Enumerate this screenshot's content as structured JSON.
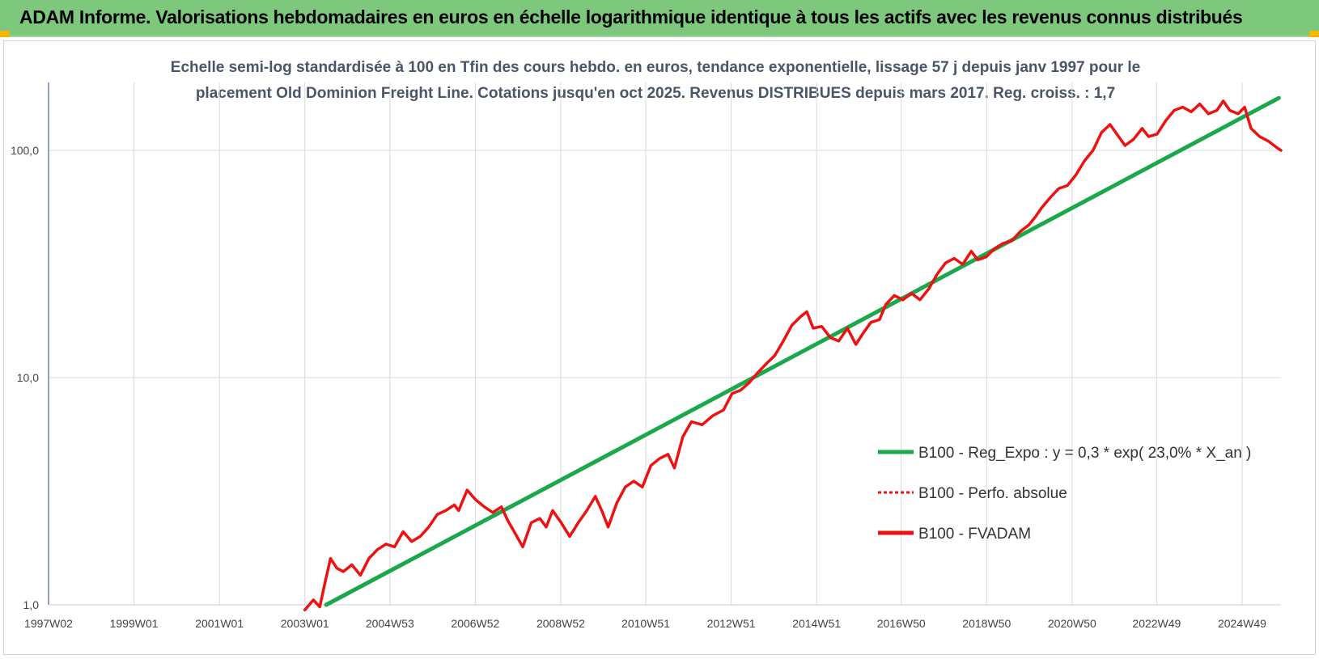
{
  "header": {
    "title": "ADAM Informe. Valorisations hebdomadaires en euros en échelle logarithmique identique à tous les actifs avec les revenus connus distribués"
  },
  "chart_data": {
    "type": "line",
    "title_line1": "Echelle semi-log standardisée à 100 en Tfin des cours hebdo. en euros, tendance exponentielle, lissage 57 j depuis janv 1997 pour le",
    "title_line2": "placement Old Dominion Freight Line. Cotations jusqu'en oct 2025. Revenus DISTRIBUES depuis mars 2017. Reg. croiss. : 1,7",
    "y_scale": "log",
    "ylim": [
      1,
      200
    ],
    "y_ticks": [
      {
        "value": 1,
        "label": "1,0"
      },
      {
        "value": 10,
        "label": "10,0"
      },
      {
        "value": 100,
        "label": "100,0"
      }
    ],
    "x_range": [
      1997.0,
      2025.85
    ],
    "x_ticks": [
      {
        "value": 1997.0,
        "label": "1997W02"
      },
      {
        "value": 1999.0,
        "label": "1999W01"
      },
      {
        "value": 2001.0,
        "label": "2001W01"
      },
      {
        "value": 2003.0,
        "label": "2003W01"
      },
      {
        "value": 2004.99,
        "label": "2004W53"
      },
      {
        "value": 2006.99,
        "label": "2006W52"
      },
      {
        "value": 2008.99,
        "label": "2008W52"
      },
      {
        "value": 2010.98,
        "label": "2010W51"
      },
      {
        "value": 2012.98,
        "label": "2012W51"
      },
      {
        "value": 2014.98,
        "label": "2014W51"
      },
      {
        "value": 2016.96,
        "label": "2016W50"
      },
      {
        "value": 2018.96,
        "label": "2018W50"
      },
      {
        "value": 2020.96,
        "label": "2020W50"
      },
      {
        "value": 2022.94,
        "label": "2022W49"
      },
      {
        "value": 2024.94,
        "label": "2024W49"
      }
    ],
    "grid": true,
    "legend_position": "bottom-right",
    "series": [
      {
        "name": "B100 - Reg_Expo : y = 0,3 * exp( 23,0% *  X_an )",
        "color": "#1aa84a",
        "style": "solid",
        "x": [
          2003.5,
          2025.8
        ],
        "y": [
          1.0,
          170
        ]
      },
      {
        "name": "B100 - Perfo. absolue",
        "color": "#ee1111",
        "style": "dotted",
        "x": [],
        "y": []
      },
      {
        "name": "B100 - FVADAM",
        "color": "#ee1111",
        "style": "solid",
        "x": [
          2003.0,
          2003.2,
          2003.35,
          2003.45,
          2003.6,
          2003.75,
          2003.9,
          2004.1,
          2004.3,
          2004.5,
          2004.7,
          2004.9,
          2005.1,
          2005.3,
          2005.5,
          2005.7,
          2005.9,
          2006.1,
          2006.3,
          2006.5,
          2006.6,
          2006.8,
          2007.0,
          2007.2,
          2007.4,
          2007.6,
          2007.75,
          2007.9,
          2008.1,
          2008.3,
          2008.5,
          2008.65,
          2008.8,
          2009.0,
          2009.2,
          2009.4,
          2009.6,
          2009.8,
          2009.95,
          2010.1,
          2010.3,
          2010.5,
          2010.7,
          2010.9,
          2011.1,
          2011.3,
          2011.5,
          2011.65,
          2011.85,
          2012.05,
          2012.3,
          2012.55,
          2012.8,
          2013.0,
          2013.2,
          2013.4,
          2013.6,
          2013.8,
          2014.0,
          2014.2,
          2014.4,
          2014.6,
          2014.75,
          2014.9,
          2015.1,
          2015.3,
          2015.5,
          2015.7,
          2015.9,
          2016.05,
          2016.25,
          2016.45,
          2016.6,
          2016.8,
          2017.0,
          2017.2,
          2017.4,
          2017.6,
          2017.8,
          2018.0,
          2018.2,
          2018.4,
          2018.6,
          2018.75,
          2018.95,
          2019.15,
          2019.35,
          2019.55,
          2019.75,
          2019.95,
          2020.1,
          2020.25,
          2020.45,
          2020.65,
          2020.85,
          2021.05,
          2021.25,
          2021.45,
          2021.65,
          2021.85,
          2022.05,
          2022.2,
          2022.4,
          2022.6,
          2022.75,
          2022.95,
          2023.15,
          2023.35,
          2023.55,
          2023.75,
          2023.95,
          2024.15,
          2024.35,
          2024.5,
          2024.65,
          2024.85,
          2025.0,
          2025.15,
          2025.35,
          2025.55,
          2025.75,
          2025.85
        ],
        "y": [
          0.95,
          1.05,
          0.98,
          1.2,
          1.6,
          1.45,
          1.4,
          1.5,
          1.35,
          1.6,
          1.75,
          1.85,
          1.8,
          2.1,
          1.9,
          2.0,
          2.2,
          2.5,
          2.6,
          2.75,
          2.6,
          3.2,
          2.9,
          2.7,
          2.55,
          2.7,
          2.35,
          2.1,
          1.8,
          2.3,
          2.4,
          2.2,
          2.6,
          2.3,
          2.0,
          2.3,
          2.6,
          3.0,
          2.6,
          2.2,
          2.8,
          3.3,
          3.5,
          3.3,
          4.1,
          4.4,
          4.6,
          4.0,
          5.5,
          6.4,
          6.2,
          6.8,
          7.2,
          8.5,
          8.8,
          9.5,
          10.5,
          11.5,
          12.5,
          14.5,
          17.0,
          18.5,
          19.5,
          16.5,
          16.8,
          15.0,
          14.5,
          16.5,
          14.0,
          15.5,
          17.5,
          18.0,
          21.0,
          23.0,
          22.0,
          23.5,
          22.0,
          24.5,
          28.5,
          32.0,
          33.5,
          31.5,
          36.0,
          33.0,
          34.0,
          37.0,
          39.0,
          40.0,
          44.0,
          47.0,
          51.0,
          56.0,
          62.0,
          68.0,
          70.0,
          78.0,
          90.0,
          100.0,
          120.0,
          130.0,
          115.0,
          105.0,
          112.0,
          125.0,
          115.0,
          118.0,
          135.0,
          150.0,
          155.0,
          148.0,
          160.0,
          145.0,
          150.0,
          165.0,
          150.0,
          145.0,
          155.0,
          125.0,
          115.0,
          110.0,
          103.0,
          100.0
        ]
      }
    ]
  }
}
